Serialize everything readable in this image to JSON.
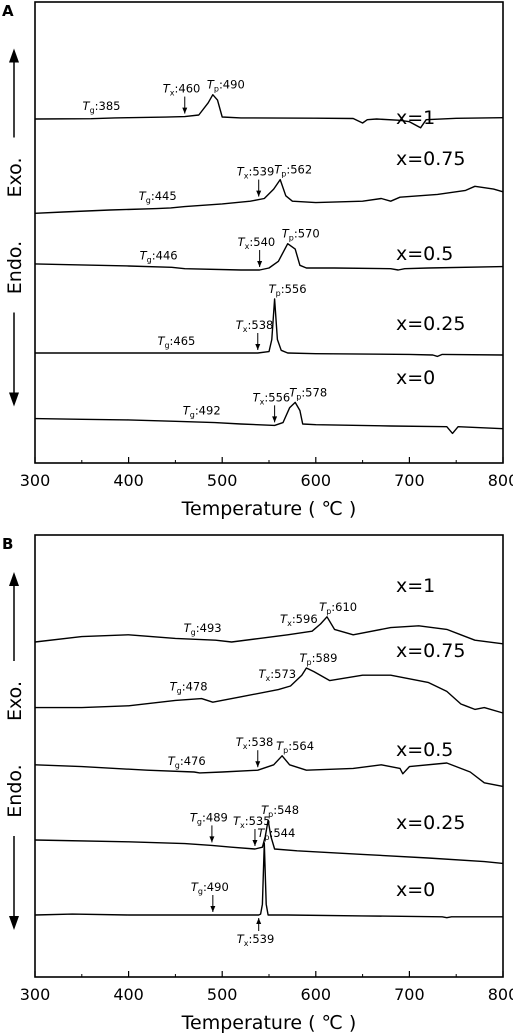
{
  "chart_data": [
    {
      "panel": "A",
      "type": "line",
      "xlabel": "Temperature ( ℃ )",
      "xlim": [
        300,
        800
      ],
      "xticks": [
        300,
        400,
        500,
        600,
        700,
        800
      ],
      "ylabel_top": "Exo.",
      "ylabel_bottom": "Endo.",
      "series": [
        {
          "name": "x=1",
          "points": [
            [
              300,
              0
            ],
            [
              360,
              0.2
            ],
            [
              385,
              0.8
            ],
            [
              400,
              1.0
            ],
            [
              440,
              1.4
            ],
            [
              460,
              1.8
            ],
            [
              475,
              3
            ],
            [
              485,
              12
            ],
            [
              490,
              18
            ],
            [
              495,
              14
            ],
            [
              500,
              1.5
            ],
            [
              520,
              0.8
            ],
            [
              600,
              0.6
            ],
            [
              640,
              0.4
            ],
            [
              650,
              -3
            ],
            [
              655,
              -0.5
            ],
            [
              665,
              0
            ],
            [
              690,
              -1
            ],
            [
              700,
              -2
            ],
            [
              712,
              -6.5
            ],
            [
              718,
              -0.5
            ],
            [
              750,
              0.5
            ],
            [
              800,
              1
            ]
          ],
          "annotations": [
            {
              "sym": "T",
              "sub": "g",
              "val": "385",
              "x": 385
            },
            {
              "sym": "T",
              "sub": "x",
              "val": "460",
              "x": 460,
              "arrow": true
            },
            {
              "sym": "T",
              "sub": "p",
              "val": "490",
              "x": 490
            }
          ]
        },
        {
          "name": "x=0.75",
          "points": [
            [
              300,
              -1
            ],
            [
              330,
              0
            ],
            [
              380,
              1.5
            ],
            [
              430,
              2.5
            ],
            [
              445,
              3
            ],
            [
              460,
              4
            ],
            [
              500,
              6
            ],
            [
              530,
              8
            ],
            [
              545,
              10
            ],
            [
              555,
              17
            ],
            [
              562,
              24
            ],
            [
              568,
              12
            ],
            [
              575,
              8
            ],
            [
              600,
              7
            ],
            [
              650,
              8
            ],
            [
              670,
              10
            ],
            [
              680,
              8
            ],
            [
              690,
              11
            ],
            [
              730,
              13
            ],
            [
              760,
              16
            ],
            [
              770,
              19
            ],
            [
              780,
              18
            ],
            [
              790,
              17
            ],
            [
              800,
              15
            ]
          ],
          "annotations": [
            {
              "sym": "T",
              "sub": "g",
              "val": "445",
              "x": 445
            },
            {
              "sym": "T",
              "sub": "x",
              "val": "539",
              "x": 539,
              "arrow": true
            },
            {
              "sym": "T",
              "sub": "p",
              "val": "562",
              "x": 562
            }
          ]
        },
        {
          "name": "x=0.5",
          "points": [
            [
              300,
              3
            ],
            [
              330,
              2.5
            ],
            [
              400,
              1.5
            ],
            [
              446,
              0.5
            ],
            [
              460,
              -0.5
            ],
            [
              520,
              -1.5
            ],
            [
              540,
              -1.5
            ],
            [
              550,
              0
            ],
            [
              560,
              5
            ],
            [
              570,
              18
            ],
            [
              578,
              14
            ],
            [
              583,
              2
            ],
            [
              590,
              0
            ],
            [
              620,
              0
            ],
            [
              680,
              -0.5
            ],
            [
              688,
              -1.5
            ],
            [
              695,
              -0.5
            ],
            [
              720,
              0
            ],
            [
              800,
              1
            ]
          ],
          "annotations": [
            {
              "sym": "T",
              "sub": "g",
              "val": "446",
              "x": 446
            },
            {
              "sym": "T",
              "sub": "x",
              "val": "540",
              "x": 540,
              "arrow": true
            },
            {
              "sym": "T",
              "sub": "p",
              "val": "570",
              "x": 570
            }
          ]
        },
        {
          "name": "x=0.25",
          "points": [
            [
              300,
              0
            ],
            [
              400,
              0
            ],
            [
              465,
              0
            ],
            [
              500,
              0
            ],
            [
              538,
              0
            ],
            [
              550,
              1
            ],
            [
              553,
              10
            ],
            [
              556,
              40
            ],
            [
              559,
              10
            ],
            [
              563,
              2
            ],
            [
              570,
              0
            ],
            [
              600,
              -0.5
            ],
            [
              700,
              -1
            ],
            [
              725,
              -1.5
            ],
            [
              730,
              -2.5
            ],
            [
              735,
              -1
            ],
            [
              800,
              -1.5
            ]
          ],
          "annotations": [
            {
              "sym": "T",
              "sub": "g",
              "val": "465",
              "x": 465
            },
            {
              "sym": "T",
              "sub": "x",
              "val": "538",
              "x": 538,
              "arrow": true
            },
            {
              "sym": "T",
              "sub": "p",
              "val": "556",
              "x": 556
            }
          ]
        },
        {
          "name": "x=0",
          "points": [
            [
              300,
              4
            ],
            [
              350,
              3.5
            ],
            [
              400,
              3
            ],
            [
              450,
              2
            ],
            [
              492,
              1
            ],
            [
              520,
              0
            ],
            [
              556,
              -1
            ],
            [
              565,
              1
            ],
            [
              572,
              12
            ],
            [
              578,
              16
            ],
            [
              583,
              10
            ],
            [
              586,
              0
            ],
            [
              600,
              -0.5
            ],
            [
              680,
              -1.5
            ],
            [
              740,
              -2
            ],
            [
              746,
              -7
            ],
            [
              752,
              -2
            ],
            [
              800,
              -3.5
            ]
          ],
          "annotations": [
            {
              "sym": "T",
              "sub": "g",
              "val": "492",
              "x": 492
            },
            {
              "sym": "T",
              "sub": "x",
              "val": "556",
              "x": 556,
              "arrow": true
            },
            {
              "sym": "T",
              "sub": "p",
              "val": "578",
              "x": 578
            }
          ]
        }
      ]
    },
    {
      "panel": "B",
      "type": "line",
      "xlabel": "Temperature ( ℃ )",
      "xlim": [
        300,
        800
      ],
      "xticks": [
        300,
        400,
        500,
        600,
        700,
        800
      ],
      "ylabel_top": "Exo.",
      "ylabel_bottom": "Endo.",
      "series": [
        {
          "name": "x=1",
          "points": [
            [
              300,
              0
            ],
            [
              350,
              3
            ],
            [
              400,
              4
            ],
            [
              450,
              2
            ],
            [
              493,
              1
            ],
            [
              510,
              0
            ],
            [
              540,
              2
            ],
            [
              570,
              4
            ],
            [
              596,
              6
            ],
            [
              605,
              10
            ],
            [
              612,
              14
            ],
            [
              620,
              7
            ],
            [
              640,
              4
            ],
            [
              680,
              8
            ],
            [
              710,
              9
            ],
            [
              740,
              7
            ],
            [
              755,
              4
            ],
            [
              770,
              1
            ],
            [
              800,
              -1
            ]
          ],
          "annotations": [
            {
              "sym": "T",
              "sub": "g",
              "val": "493",
              "x": 493
            },
            {
              "sym": "T",
              "sub": "x",
              "val": "596",
              "x": 596
            },
            {
              "sym": "T",
              "sub": "p",
              "val": "610",
              "x": 610
            }
          ]
        },
        {
          "name": "x=0.75",
          "points": [
            [
              300,
              -2
            ],
            [
              350,
              -2
            ],
            [
              400,
              -1
            ],
            [
              450,
              2
            ],
            [
              478,
              3
            ],
            [
              490,
              1
            ],
            [
              520,
              4
            ],
            [
              560,
              8
            ],
            [
              573,
              10
            ],
            [
              585,
              16
            ],
            [
              590,
              20
            ],
            [
              598,
              18
            ],
            [
              615,
              13
            ],
            [
              650,
              16
            ],
            [
              680,
              16
            ],
            [
              720,
              12
            ],
            [
              740,
              7
            ],
            [
              755,
              0
            ],
            [
              760,
              -1
            ],
            [
              770,
              -3
            ],
            [
              780,
              -2
            ],
            [
              800,
              -5
            ]
          ],
          "annotations": [
            {
              "sym": "T",
              "sub": "g",
              "val": "478",
              "x": 478
            },
            {
              "sym": "T",
              "sub": "x",
              "val": "573",
              "x": 573
            },
            {
              "sym": "T",
              "sub": "p",
              "val": "589",
              "x": 589
            }
          ]
        },
        {
          "name": "x=0.5",
          "points": [
            [
              300,
              4
            ],
            [
              350,
              3
            ],
            [
              420,
              1
            ],
            [
              470,
              0
            ],
            [
              476,
              -0.5
            ],
            [
              500,
              0
            ],
            [
              538,
              1
            ],
            [
              555,
              4
            ],
            [
              564,
              9
            ],
            [
              572,
              4
            ],
            [
              590,
              1
            ],
            [
              640,
              2
            ],
            [
              670,
              4
            ],
            [
              690,
              2
            ],
            [
              693,
              -1
            ],
            [
              700,
              3
            ],
            [
              740,
              5
            ],
            [
              765,
              0
            ],
            [
              780,
              -6
            ],
            [
              800,
              -8
            ]
          ],
          "annotations": [
            {
              "sym": "T",
              "sub": "g",
              "val": "476",
              "x": 476
            },
            {
              "sym": "T",
              "sub": "x",
              "val": "538",
              "x": 538,
              "arrow": true
            },
            {
              "sym": "T",
              "sub": "p",
              "val": "564",
              "x": 564
            }
          ]
        },
        {
          "name": "x=0.25",
          "points": [
            [
              300,
              5
            ],
            [
              400,
              4
            ],
            [
              460,
              3
            ],
            [
              489,
              2
            ],
            [
              510,
              1
            ],
            [
              535,
              0
            ],
            [
              543,
              1
            ],
            [
              546,
              7
            ],
            [
              549,
              16
            ],
            [
              552,
              7
            ],
            [
              556,
              0
            ],
            [
              580,
              -1
            ],
            [
              650,
              -3
            ],
            [
              720,
              -5
            ],
            [
              780,
              -7
            ],
            [
              800,
              -8
            ]
          ],
          "annotations": [
            {
              "sym": "T",
              "sub": "g",
              "val": "489",
              "x": 489,
              "arrow": true
            },
            {
              "sym": "T",
              "sub": "x",
              "val": "535",
              "x": 535,
              "arrow": true
            },
            {
              "sym": "T",
              "sub": "p",
              "val": "548",
              "x": 548
            }
          ]
        },
        {
          "name": "x=0",
          "points": [
            [
              300,
              0
            ],
            [
              340,
              0.5
            ],
            [
              400,
              0
            ],
            [
              490,
              0
            ],
            [
              520,
              0
            ],
            [
              539,
              0
            ],
            [
              541,
              0.5
            ],
            [
              543,
              6
            ],
            [
              545,
              40
            ],
            [
              547,
              6
            ],
            [
              549,
              0
            ],
            [
              570,
              0
            ],
            [
              650,
              -0.5
            ],
            [
              735,
              -1
            ],
            [
              740,
              -1.5
            ],
            [
              745,
              -1
            ],
            [
              800,
              -1
            ]
          ],
          "annotations": [
            {
              "sym": "T",
              "sub": "g",
              "val": "490",
              "x": 490,
              "arrow": true
            },
            {
              "sym": "T",
              "sub": "x",
              "val": "539",
              "x": 539,
              "arrow": true,
              "below": true
            },
            {
              "sym": "T",
              "sub": "p",
              "val": "544",
              "x": 544
            }
          ]
        }
      ]
    }
  ]
}
